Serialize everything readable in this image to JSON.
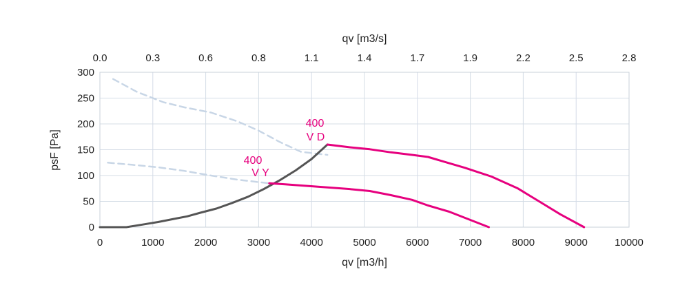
{
  "chart_data": {
    "type": "line",
    "title": "",
    "xlabel": "qv [m3/h]",
    "x2label": "qv [m3/s]",
    "ylabel": "psF [Pa]",
    "xlim": [
      0,
      10000
    ],
    "ylim": [
      0,
      300
    ],
    "x_ticks": [
      0,
      1000,
      2000,
      3000,
      4000,
      5000,
      6000,
      7000,
      8000,
      9000,
      10000
    ],
    "y_ticks": [
      0,
      50,
      100,
      150,
      200,
      250,
      300
    ],
    "x2_ticks": [
      "0.0",
      "0.3",
      "0.6",
      "0.8",
      "1.1",
      "1.4",
      "1.7",
      "1.9",
      "2.2",
      "2.5",
      "2.8"
    ],
    "grid": true,
    "colors": {
      "curve": "#e6007e",
      "system": "#555555",
      "extension": "#c8d6e6"
    },
    "series": [
      {
        "label_line1": "400",
        "label_line2": "V D",
        "style": "solid",
        "x": [
          4300,
          4700,
          5100,
          5500,
          5900,
          6200,
          6500,
          6900,
          7400,
          7900,
          8300,
          8700,
          9150
        ],
        "y": [
          160,
          155,
          151,
          145,
          140,
          136,
          127,
          115,
          98,
          75,
          50,
          25,
          0
        ]
      },
      {
        "label_line1": "400",
        "label_line2": "V Y",
        "style": "solid",
        "x": [
          3200,
          3500,
          3900,
          4300,
          4700,
          5100,
          5500,
          5900,
          6200,
          6600,
          7000,
          7350
        ],
        "y": [
          85,
          83,
          80,
          77,
          74,
          70,
          62,
          53,
          42,
          30,
          14,
          0
        ]
      },
      {
        "style": "dashed",
        "x": [
          250,
          700,
          1200,
          1600,
          2100,
          2600,
          3000,
          3400,
          3800,
          4300
        ],
        "y": [
          287,
          262,
          242,
          232,
          222,
          205,
          187,
          165,
          146,
          140
        ]
      },
      {
        "style": "dashed",
        "x": [
          150,
          600,
          1100,
          1600,
          2100,
          2600,
          3200
        ],
        "y": [
          125,
          121,
          116,
          109,
          100,
          92,
          85
        ]
      },
      {
        "style": "system",
        "x": [
          0,
          500,
          800,
          1100,
          1400,
          1650,
          1900,
          2200,
          2500,
          2800,
          3100,
          3400,
          3700,
          4000,
          4300
        ],
        "y": [
          0,
          0,
          5,
          10,
          16,
          21,
          28,
          36,
          47,
          59,
          74,
          91,
          110,
          132,
          160
        ]
      }
    ]
  }
}
